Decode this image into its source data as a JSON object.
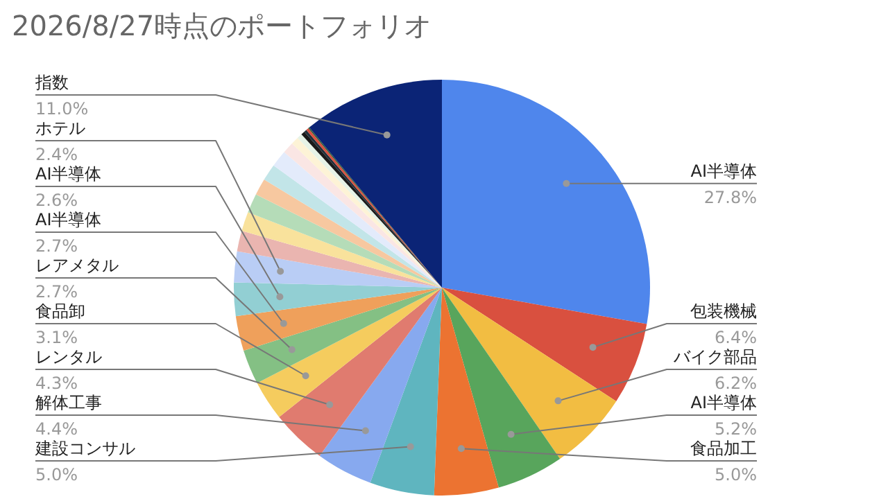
{
  "chart_data": {
    "type": "pie",
    "title": "2026/8/27時点のポートフォリオ",
    "categories": [
      "AI半導体",
      "包装機械",
      "バイク部品",
      "AI半導体",
      "食品加工",
      "建設コンサル",
      "解体工事",
      "レンタル",
      "食品卸",
      "レアメタル",
      "AI半導体",
      "AI半導体",
      "ホテル",
      null,
      null,
      null,
      null,
      null,
      null,
      null,
      null,
      null,
      null,
      null,
      null,
      null,
      "指数"
    ],
    "values": [
      27.8,
      6.4,
      6.2,
      5.2,
      5.0,
      5.0,
      4.4,
      4.3,
      3.1,
      2.7,
      2.7,
      2.6,
      2.4,
      1.6,
      1.5,
      1.5,
      1.3,
      1.3,
      1.3,
      0.9,
      0.6,
      0.4,
      0.3,
      0.2,
      0.2,
      0.1,
      11.0
    ],
    "value_labels": [
      "27.8%",
      "6.4%",
      "6.2%",
      "5.2%",
      "5.0%",
      "5.0%",
      "4.4%",
      "4.3%",
      "3.1%",
      "2.7%",
      "2.7%",
      "2.6%",
      "2.4%",
      null,
      null,
      null,
      null,
      null,
      null,
      null,
      null,
      null,
      null,
      null,
      null,
      null,
      "11.0%"
    ],
    "colors": [
      "#4f86ec",
      "#d9503f",
      "#f2bd42",
      "#58a55c",
      "#ec7331",
      "#5fb5bf",
      "#87a9ef",
      "#e07b6f",
      "#f5cc5e",
      "#84c084",
      "#efa05b",
      "#92cfd3",
      "#b9cdf5",
      "#eab5b0",
      "#f9e29c",
      "#b5dcb8",
      "#f7c8a0",
      "#c2e5e8",
      "#e3ebfb",
      "#fae6e4",
      "#fdf3d6",
      "#e6f3e7",
      "#1a1a1a",
      "#222f3a",
      "#d9503f",
      "#2f5d3a",
      "#0b2476"
    ]
  }
}
